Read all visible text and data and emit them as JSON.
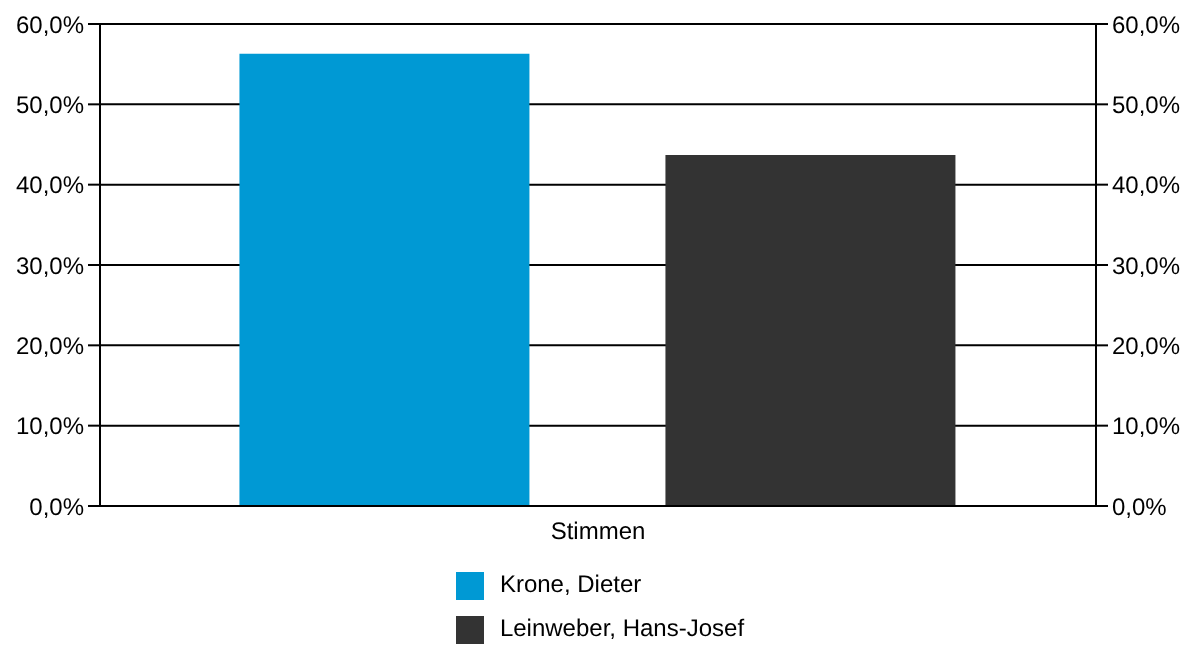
{
  "chart_data": {
    "type": "bar",
    "categories": [
      "Stimmen"
    ],
    "series": [
      {
        "name": "Krone, Dieter",
        "color": "#0099d4",
        "values": [
          56.3
        ]
      },
      {
        "name": "Leinweber, Hans-Josef",
        "color": "#333333",
        "values": [
          43.7
        ]
      }
    ],
    "ylim": [
      0,
      60
    ],
    "yticks": [
      {
        "value": 0,
        "label": "0,0%"
      },
      {
        "value": 10,
        "label": "10,0%"
      },
      {
        "value": 20,
        "label": "20,0%"
      },
      {
        "value": 30,
        "label": "30,0%"
      },
      {
        "value": 40,
        "label": "40,0%"
      },
      {
        "value": 50,
        "label": "50,0%"
      },
      {
        "value": 60,
        "label": "60,0%"
      }
    ],
    "grid": "y",
    "legend": "bottom"
  }
}
